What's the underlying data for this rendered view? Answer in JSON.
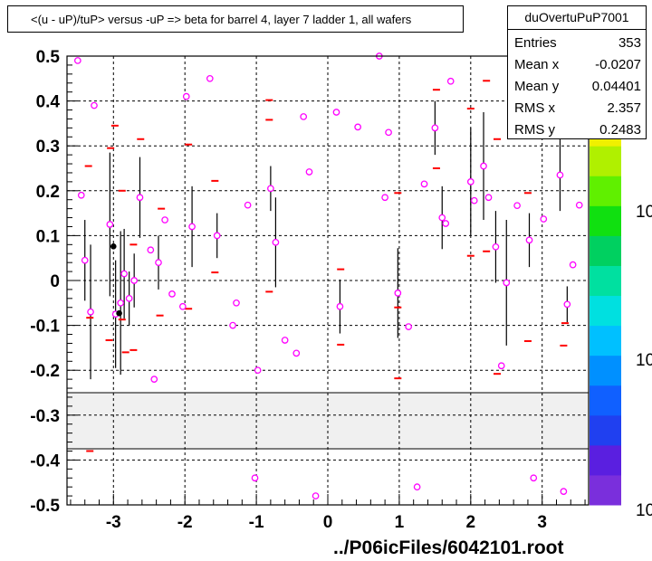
{
  "title": "<(u - uP)/tuP> versus  -uP => beta for barrel 4, layer 7 ladder 1, all wafers",
  "stats": {
    "name": "duOvertuPuP7001",
    "rows": [
      {
        "label": "Entries",
        "value": "353"
      },
      {
        "label": "Mean x",
        "value": "-0.0207"
      },
      {
        "label": "Mean y",
        "value": "0.04401"
      },
      {
        "label": "RMS x",
        "value": "2.357"
      },
      {
        "label": "RMS y",
        "value": "0.2483"
      }
    ]
  },
  "footer": "../P06icFiles/6042101.root",
  "palette_labels": [
    "10",
    "10",
    "10"
  ],
  "colors": {
    "marker": "#ff00ff",
    "dash": "#ff0000",
    "errbar": "#000000",
    "band": "#f0f0f0",
    "palette": [
      "#7a2fdc",
      "#5a1fe0",
      "#2040f0",
      "#1060ff",
      "#0090ff",
      "#00c0ff",
      "#00e0e0",
      "#00e0a0",
      "#00d060",
      "#10e010",
      "#60f000",
      "#b0f000",
      "#f0f000",
      "#ffc000",
      "#ff9000"
    ]
  },
  "chart_data": {
    "type": "scatter",
    "xlim": [
      -3.65,
      3.65
    ],
    "ylim": [
      -0.5,
      0.5
    ],
    "xticks": [
      -3,
      -2,
      -1,
      0,
      1,
      2,
      3
    ],
    "yticks": [
      -0.5,
      -0.4,
      -0.3,
      -0.2,
      -0.1,
      0,
      0.1,
      0.2,
      0.3,
      0.4,
      0.5
    ],
    "xtick_labels": [
      "-3",
      "-2",
      "-1",
      "0",
      "1",
      "2",
      "3"
    ],
    "ytick_labels": [
      "-0.5",
      "-0.4",
      "-0.3",
      "-0.2",
      "-0.1",
      "0",
      "0.1",
      "0.2",
      "0.3",
      "0.4",
      "0.5"
    ],
    "grid": true,
    "band": {
      "y_from": -0.375,
      "y_to": -0.25
    },
    "points": [
      {
        "x": -3.5,
        "y": 0.49
      },
      {
        "x": -3.45,
        "y": 0.19
      },
      {
        "x": -3.4,
        "y": 0.045,
        "e": 0.09
      },
      {
        "x": -3.32,
        "y": -0.07,
        "e": 0.15
      },
      {
        "x": -3.27,
        "y": 0.39
      },
      {
        "x": -3.05,
        "y": 0.125,
        "e": 0.16
      },
      {
        "x": -2.97,
        "y": -0.075,
        "e": 0.12
      },
      {
        "x": -2.9,
        "y": -0.05,
        "e": 0.16
      },
      {
        "x": -2.85,
        "y": 0.015,
        "e": 0.1
      },
      {
        "x": -2.78,
        "y": -0.04,
        "e": 0.06
      },
      {
        "x": -2.71,
        "y": 0.0,
        "e": 0.06
      },
      {
        "x": -2.63,
        "y": 0.185,
        "e": 0.09
      },
      {
        "x": -2.48,
        "y": 0.068
      },
      {
        "x": -2.43,
        "y": -0.22
      },
      {
        "x": -2.37,
        "y": 0.04,
        "e": 0.06
      },
      {
        "x": -2.28,
        "y": 0.135
      },
      {
        "x": -2.18,
        "y": -0.03
      },
      {
        "x": -2.03,
        "y": -0.058
      },
      {
        "x": -1.98,
        "y": 0.41
      },
      {
        "x": -1.9,
        "y": 0.12,
        "e": 0.09
      },
      {
        "x": -1.65,
        "y": 0.45
      },
      {
        "x": -1.55,
        "y": 0.1,
        "e": 0.05
      },
      {
        "x": -1.33,
        "y": -0.1
      },
      {
        "x": -1.28,
        "y": -0.05
      },
      {
        "x": -1.12,
        "y": 0.168
      },
      {
        "x": -1.02,
        "y": -0.44
      },
      {
        "x": -0.98,
        "y": -0.2
      },
      {
        "x": -0.8,
        "y": 0.205,
        "e": 0.05
      },
      {
        "x": -0.73,
        "y": 0.085,
        "e": 0.1
      },
      {
        "x": -0.6,
        "y": -0.133
      },
      {
        "x": -0.44,
        "y": -0.162
      },
      {
        "x": -0.34,
        "y": 0.365
      },
      {
        "x": -0.26,
        "y": 0.242
      },
      {
        "x": -0.17,
        "y": -0.48
      },
      {
        "x": 0.12,
        "y": 0.375
      },
      {
        "x": 0.17,
        "y": -0.058,
        "e": 0.06
      },
      {
        "x": 0.42,
        "y": 0.342
      },
      {
        "x": 0.72,
        "y": 0.5
      },
      {
        "x": 0.8,
        "y": 0.185
      },
      {
        "x": 0.85,
        "y": 0.33
      },
      {
        "x": 0.98,
        "y": -0.028,
        "e": 0.1
      },
      {
        "x": 1.13,
        "y": -0.103
      },
      {
        "x": 1.25,
        "y": -0.46
      },
      {
        "x": 1.35,
        "y": 0.215
      },
      {
        "x": 1.5,
        "y": 0.34,
        "e": 0.06
      },
      {
        "x": 1.6,
        "y": 0.14,
        "e": 0.07
      },
      {
        "x": 1.65,
        "y": 0.127
      },
      {
        "x": 1.72,
        "y": 0.444
      },
      {
        "x": 2.0,
        "y": 0.22,
        "e": 0.12
      },
      {
        "x": 2.05,
        "y": 0.178
      },
      {
        "x": 2.18,
        "y": 0.255,
        "e": 0.12
      },
      {
        "x": 2.25,
        "y": 0.185
      },
      {
        "x": 2.35,
        "y": 0.075,
        "e": 0.08
      },
      {
        "x": 2.43,
        "y": -0.19
      },
      {
        "x": 2.5,
        "y": -0.005,
        "e": 0.14
      },
      {
        "x": 2.65,
        "y": 0.167
      },
      {
        "x": 2.82,
        "y": 0.09,
        "e": 0.06
      },
      {
        "x": 2.88,
        "y": -0.44
      },
      {
        "x": 3.02,
        "y": 0.137
      },
      {
        "x": 3.25,
        "y": 0.235,
        "e": 0.08
      },
      {
        "x": 3.3,
        "y": -0.47
      },
      {
        "x": 3.35,
        "y": -0.053,
        "e": 0.04
      },
      {
        "x": 3.43,
        "y": 0.035
      },
      {
        "x": 3.52,
        "y": 0.168
      }
    ],
    "black_points": [
      {
        "x": -3.0,
        "y": 0.076
      },
      {
        "x": -2.92,
        "y": -0.073
      }
    ],
    "dashes": [
      {
        "x": -3.35,
        "y": 0.255
      },
      {
        "x": -3.33,
        "y": -0.083
      },
      {
        "x": -3.33,
        "y": -0.38
      },
      {
        "x": -3.06,
        "y": -0.133
      },
      {
        "x": -3.04,
        "y": 0.295
      },
      {
        "x": -2.98,
        "y": 0.345
      },
      {
        "x": -2.88,
        "y": 0.2
      },
      {
        "x": -2.88,
        "y": -0.087
      },
      {
        "x": -2.83,
        "y": -0.16
      },
      {
        "x": -2.72,
        "y": 0.08
      },
      {
        "x": -2.72,
        "y": -0.155
      },
      {
        "x": -2.62,
        "y": 0.315
      },
      {
        "x": -2.35,
        "y": -0.078
      },
      {
        "x": -2.33,
        "y": 0.16
      },
      {
        "x": -1.95,
        "y": 0.303
      },
      {
        "x": -1.95,
        "y": -0.063
      },
      {
        "x": -1.58,
        "y": 0.222
      },
      {
        "x": -1.58,
        "y": 0.018
      },
      {
        "x": -0.82,
        "y": 0.358
      },
      {
        "x": -0.82,
        "y": 0.402
      },
      {
        "x": -0.82,
        "y": -0.025
      },
      {
        "x": 0.18,
        "y": 0.025
      },
      {
        "x": 0.18,
        "y": -0.143
      },
      {
        "x": 0.98,
        "y": -0.06
      },
      {
        "x": 0.98,
        "y": -0.218
      },
      {
        "x": 0.98,
        "y": 0.195
      },
      {
        "x": 1.52,
        "y": 0.425
      },
      {
        "x": 1.52,
        "y": 0.25
      },
      {
        "x": 2.0,
        "y": 0.383
      },
      {
        "x": 2.0,
        "y": 0.055
      },
      {
        "x": 2.22,
        "y": 0.445
      },
      {
        "x": 2.22,
        "y": 0.065
      },
      {
        "x": 2.37,
        "y": 0.315
      },
      {
        "x": 2.37,
        "y": -0.208
      },
      {
        "x": 2.8,
        "y": 0.195
      },
      {
        "x": 2.8,
        "y": -0.135
      },
      {
        "x": 3.27,
        "y": 0.353
      },
      {
        "x": 3.3,
        "y": -0.145
      },
      {
        "x": 3.32,
        "y": -0.095
      }
    ]
  }
}
